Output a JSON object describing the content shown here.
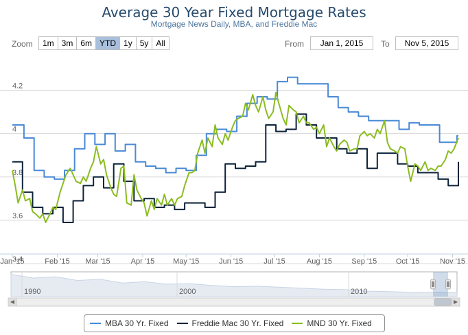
{
  "header": {
    "title": "Average 30 Year Fixed Mortgage Rates",
    "subtitle": "Mortgage News Daily, MBA, and Freddie Mac"
  },
  "range_selector": {
    "zoom_label": "Zoom",
    "buttons": [
      "1m",
      "3m",
      "6m",
      "YTD",
      "1y",
      "5y",
      "All"
    ],
    "active": "YTD",
    "from_label": "From",
    "from_value": "Jan 1, 2015",
    "to_label": "To",
    "to_value": "Nov 5, 2015"
  },
  "navigator": {
    "year_labels": [
      "1990",
      "2000",
      "2010"
    ]
  },
  "colors": {
    "mba": "#4a8ad6",
    "freddie": "#0d233a",
    "mnd": "#8bbc21",
    "grid": "#d8d8d8",
    "axis_text": "#606060"
  },
  "chart_data": {
    "type": "line",
    "title": "Average 30 Year Fixed Mortgage Rates",
    "subtitle": "Mortgage News Daily, MBA, and Freddie Mac",
    "x_axis_ticks": [
      "Jan '15",
      "Feb '15",
      "Mar '15",
      "Apr '15",
      "May '15",
      "Jun '15",
      "Jul '15",
      "Aug '15",
      "Sep '15",
      "Oct '15",
      "Nov '15"
    ],
    "y_axis_ticks": [
      "3.4",
      "3.6",
      "3.8",
      "4",
      "4.2"
    ],
    "ylim": [
      3.4,
      4.3
    ],
    "grid": true,
    "legend_position": "bottom",
    "series": [
      {
        "name": "MBA 30 Yr. Fixed",
        "step": true,
        "points": [
          [
            "2015-01-01",
            4.04
          ],
          [
            "2015-01-09",
            3.98
          ],
          [
            "2015-01-16",
            3.83
          ],
          [
            "2015-01-23",
            3.8
          ],
          [
            "2015-01-30",
            3.79
          ],
          [
            "2015-02-06",
            3.83
          ],
          [
            "2015-02-13",
            3.93
          ],
          [
            "2015-02-20",
            4.0
          ],
          [
            "2015-02-27",
            3.95
          ],
          [
            "2015-03-06",
            4.0
          ],
          [
            "2015-03-13",
            3.92
          ],
          [
            "2015-03-20",
            3.95
          ],
          [
            "2015-03-27",
            3.87
          ],
          [
            "2015-04-03",
            3.85
          ],
          [
            "2015-04-10",
            3.84
          ],
          [
            "2015-04-17",
            3.82
          ],
          [
            "2015-04-24",
            3.84
          ],
          [
            "2015-05-01",
            3.83
          ],
          [
            "2015-05-08",
            3.9
          ],
          [
            "2015-05-15",
            4.0
          ],
          [
            "2015-05-22",
            4.02
          ],
          [
            "2015-05-29",
            4.01
          ],
          [
            "2015-06-05",
            4.08
          ],
          [
            "2015-06-12",
            4.14
          ],
          [
            "2015-06-19",
            4.17
          ],
          [
            "2015-06-26",
            4.16
          ],
          [
            "2015-07-03",
            4.24
          ],
          [
            "2015-07-10",
            4.26
          ],
          [
            "2015-07-17",
            4.23
          ],
          [
            "2015-07-24",
            4.23
          ],
          [
            "2015-07-31",
            4.23
          ],
          [
            "2015-08-07",
            4.17
          ],
          [
            "2015-08-14",
            4.12
          ],
          [
            "2015-08-21",
            4.1
          ],
          [
            "2015-08-28",
            4.08
          ],
          [
            "2015-09-04",
            4.06
          ],
          [
            "2015-09-11",
            4.06
          ],
          [
            "2015-09-18",
            4.06
          ],
          [
            "2015-09-25",
            4.02
          ],
          [
            "2015-10-02",
            4.05
          ],
          [
            "2015-10-09",
            4.04
          ],
          [
            "2015-10-16",
            4.04
          ],
          [
            "2015-10-23",
            3.96
          ],
          [
            "2015-10-30",
            3.96
          ],
          [
            "2015-11-04",
            3.99
          ]
        ]
      },
      {
        "name": "Freddie Mac 30 Yr. Fixed",
        "step": true,
        "points": [
          [
            "2015-01-01",
            3.87
          ],
          [
            "2015-01-08",
            3.73
          ],
          [
            "2015-01-15",
            3.66
          ],
          [
            "2015-01-22",
            3.63
          ],
          [
            "2015-01-29",
            3.66
          ],
          [
            "2015-02-05",
            3.59
          ],
          [
            "2015-02-12",
            3.69
          ],
          [
            "2015-02-19",
            3.76
          ],
          [
            "2015-02-26",
            3.8
          ],
          [
            "2015-03-05",
            3.75
          ],
          [
            "2015-03-12",
            3.86
          ],
          [
            "2015-03-19",
            3.78
          ],
          [
            "2015-03-26",
            3.69
          ],
          [
            "2015-04-02",
            3.7
          ],
          [
            "2015-04-09",
            3.66
          ],
          [
            "2015-04-16",
            3.67
          ],
          [
            "2015-04-23",
            3.65
          ],
          [
            "2015-04-30",
            3.68
          ],
          [
            "2015-05-07",
            3.68
          ],
          [
            "2015-05-14",
            3.66
          ],
          [
            "2015-05-21",
            3.73
          ],
          [
            "2015-05-28",
            3.86
          ],
          [
            "2015-06-04",
            3.84
          ],
          [
            "2015-06-11",
            3.85
          ],
          [
            "2015-06-18",
            3.87
          ],
          [
            "2015-06-25",
            4.04
          ],
          [
            "2015-07-02",
            4.01
          ],
          [
            "2015-07-09",
            4.02
          ],
          [
            "2015-07-16",
            4.09
          ],
          [
            "2015-07-23",
            4.04
          ],
          [
            "2015-07-30",
            3.98
          ],
          [
            "2015-08-06",
            3.98
          ],
          [
            "2015-08-13",
            3.93
          ],
          [
            "2015-08-20",
            3.91
          ],
          [
            "2015-08-27",
            3.93
          ],
          [
            "2015-09-03",
            3.84
          ],
          [
            "2015-09-10",
            3.91
          ],
          [
            "2015-09-17",
            3.91
          ],
          [
            "2015-09-24",
            3.86
          ],
          [
            "2015-10-01",
            3.85
          ],
          [
            "2015-10-08",
            3.82
          ],
          [
            "2015-10-15",
            3.82
          ],
          [
            "2015-10-22",
            3.79
          ],
          [
            "2015-10-29",
            3.76
          ],
          [
            "2015-11-05",
            3.87
          ]
        ]
      },
      {
        "name": "MND 30 Yr. Fixed",
        "step": false,
        "points": [
          [
            "2015-01-01",
            3.83
          ],
          [
            "2015-01-03",
            3.76
          ],
          [
            "2015-01-05",
            3.68
          ],
          [
            "2015-01-08",
            3.74
          ],
          [
            "2015-01-10",
            3.69
          ],
          [
            "2015-01-13",
            3.7
          ],
          [
            "2015-01-15",
            3.64
          ],
          [
            "2015-01-17",
            3.63
          ],
          [
            "2015-01-20",
            3.61
          ],
          [
            "2015-01-22",
            3.63
          ],
          [
            "2015-01-24",
            3.59
          ],
          [
            "2015-01-27",
            3.63
          ],
          [
            "2015-01-29",
            3.66
          ],
          [
            "2015-01-31",
            3.65
          ],
          [
            "2015-02-03",
            3.73
          ],
          [
            "2015-02-05",
            3.77
          ],
          [
            "2015-02-07",
            3.81
          ],
          [
            "2015-02-10",
            3.84
          ],
          [
            "2015-02-12",
            3.81
          ],
          [
            "2015-02-14",
            3.78
          ],
          [
            "2015-02-17",
            3.77
          ],
          [
            "2015-02-19",
            3.8
          ],
          [
            "2015-02-21",
            3.78
          ],
          [
            "2015-02-24",
            3.84
          ],
          [
            "2015-02-26",
            3.87
          ],
          [
            "2015-02-28",
            3.94
          ],
          [
            "2015-03-03",
            3.86
          ],
          [
            "2015-03-05",
            3.88
          ],
          [
            "2015-03-07",
            3.81
          ],
          [
            "2015-03-10",
            3.75
          ],
          [
            "2015-03-12",
            3.72
          ],
          [
            "2015-03-14",
            3.71
          ],
          [
            "2015-03-17",
            3.84
          ],
          [
            "2015-03-19",
            3.85
          ],
          [
            "2015-03-21",
            3.68
          ],
          [
            "2015-03-24",
            3.67
          ],
          [
            "2015-03-26",
            3.81
          ],
          [
            "2015-03-28",
            3.74
          ],
          [
            "2015-03-31",
            3.7
          ],
          [
            "2015-04-02",
            3.68
          ],
          [
            "2015-04-04",
            3.62
          ],
          [
            "2015-04-07",
            3.69
          ],
          [
            "2015-04-09",
            3.65
          ],
          [
            "2015-04-11",
            3.7
          ],
          [
            "2015-04-14",
            3.67
          ],
          [
            "2015-04-16",
            3.72
          ],
          [
            "2015-04-18",
            3.67
          ],
          [
            "2015-04-21",
            3.7
          ],
          [
            "2015-04-23",
            3.67
          ],
          [
            "2015-04-25",
            3.7
          ],
          [
            "2015-04-28",
            3.71
          ],
          [
            "2015-04-30",
            3.76
          ],
          [
            "2015-05-03",
            3.82
          ],
          [
            "2015-05-05",
            3.82
          ],
          [
            "2015-05-07",
            3.83
          ],
          [
            "2015-05-09",
            3.91
          ],
          [
            "2015-05-12",
            3.97
          ],
          [
            "2015-05-14",
            3.91
          ],
          [
            "2015-05-16",
            3.98
          ],
          [
            "2015-05-19",
            3.94
          ],
          [
            "2015-05-21",
            4.04
          ],
          [
            "2015-05-23",
            3.98
          ],
          [
            "2015-05-26",
            3.95
          ],
          [
            "2015-05-28",
            4.0
          ],
          [
            "2015-05-30",
            3.97
          ],
          [
            "2015-06-02",
            4.03
          ],
          [
            "2015-06-04",
            4.06
          ],
          [
            "2015-06-06",
            4.07
          ],
          [
            "2015-06-09",
            4.08
          ],
          [
            "2015-06-11",
            4.14
          ],
          [
            "2015-06-13",
            4.11
          ],
          [
            "2015-06-16",
            4.18
          ],
          [
            "2015-06-18",
            4.13
          ],
          [
            "2015-06-20",
            4.1
          ],
          [
            "2015-06-23",
            4.17
          ],
          [
            "2015-06-25",
            4.11
          ],
          [
            "2015-06-27",
            4.07
          ],
          [
            "2015-06-30",
            4.1
          ],
          [
            "2015-07-02",
            4.19
          ],
          [
            "2015-07-04",
            4.14
          ],
          [
            "2015-07-07",
            4.07
          ],
          [
            "2015-07-09",
            4.04
          ],
          [
            "2015-07-11",
            4.13
          ],
          [
            "2015-07-14",
            4.11
          ],
          [
            "2015-07-16",
            4.1
          ],
          [
            "2015-07-18",
            4.05
          ],
          [
            "2015-07-21",
            4.08
          ],
          [
            "2015-07-23",
            4.05
          ],
          [
            "2015-07-25",
            4.05
          ],
          [
            "2015-07-28",
            4.02
          ],
          [
            "2015-07-30",
            4.03
          ],
          [
            "2015-08-01",
            4.0
          ],
          [
            "2015-08-04",
            4.04
          ],
          [
            "2015-08-06",
            3.94
          ],
          [
            "2015-08-08",
            3.98
          ],
          [
            "2015-08-11",
            3.94
          ],
          [
            "2015-08-13",
            3.92
          ],
          [
            "2015-08-15",
            3.95
          ],
          [
            "2015-08-18",
            3.97
          ],
          [
            "2015-08-20",
            3.96
          ],
          [
            "2015-08-22",
            3.92
          ],
          [
            "2015-08-25",
            3.93
          ],
          [
            "2015-08-27",
            3.93
          ],
          [
            "2015-08-29",
            3.99
          ],
          [
            "2015-09-01",
            4.01
          ],
          [
            "2015-09-03",
            3.99
          ],
          [
            "2015-09-05",
            4.0
          ],
          [
            "2015-09-08",
            3.98
          ],
          [
            "2015-09-10",
            4.02
          ],
          [
            "2015-09-12",
            4.0
          ],
          [
            "2015-09-15",
            4.06
          ],
          [
            "2015-09-17",
            3.96
          ],
          [
            "2015-09-19",
            3.93
          ],
          [
            "2015-09-22",
            3.92
          ],
          [
            "2015-09-24",
            3.91
          ],
          [
            "2015-09-26",
            3.94
          ],
          [
            "2015-09-29",
            3.93
          ],
          [
            "2015-10-01",
            3.85
          ],
          [
            "2015-10-03",
            3.78
          ],
          [
            "2015-10-06",
            3.86
          ],
          [
            "2015-10-08",
            3.85
          ],
          [
            "2015-10-10",
            3.83
          ],
          [
            "2015-10-13",
            3.87
          ],
          [
            "2015-10-15",
            3.83
          ],
          [
            "2015-10-17",
            3.84
          ],
          [
            "2015-10-20",
            3.83
          ],
          [
            "2015-10-22",
            3.85
          ],
          [
            "2015-10-24",
            3.85
          ],
          [
            "2015-10-27",
            3.88
          ],
          [
            "2015-10-29",
            3.92
          ],
          [
            "2015-10-31",
            3.91
          ],
          [
            "2015-11-02",
            3.93
          ],
          [
            "2015-11-05",
            3.98
          ]
        ]
      }
    ]
  }
}
